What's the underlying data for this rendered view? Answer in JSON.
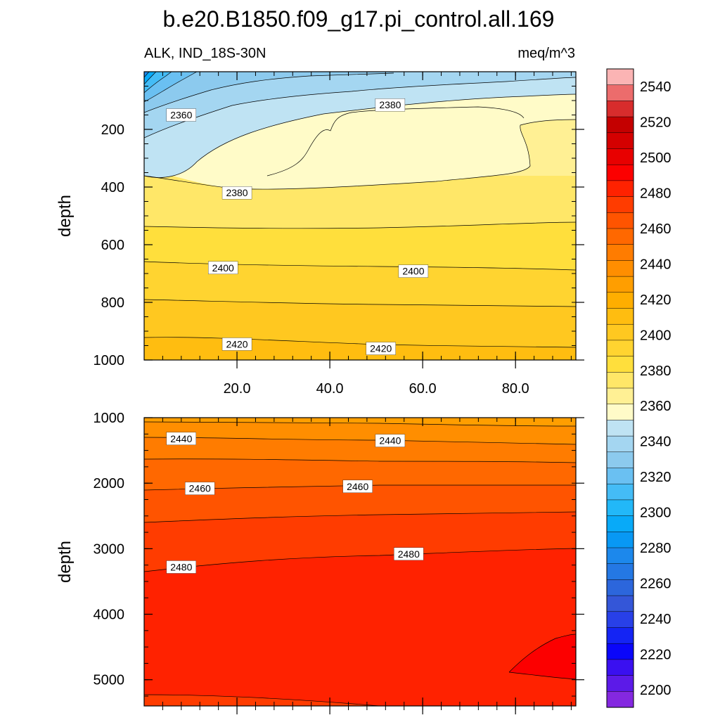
{
  "chart_data": {
    "type": "contour",
    "title": "b.e20.B1850.f09_g17.pi_control.all.169",
    "subtitle_left": "ALK, IND_18S-30N",
    "subtitle_right": "meq/m^3",
    "ylabel": "depth",
    "xlim": [
      0.0,
      93.0
    ],
    "x_ticks": [
      "20.0",
      "40.0",
      "60.0",
      "80.0"
    ],
    "x_tick_values": [
      20,
      40,
      60,
      80
    ],
    "panels": [
      {
        "name": "upper",
        "ylim": [
          0,
          1000
        ],
        "y_ticks": [
          "200",
          "400",
          "600",
          "800",
          "1000"
        ],
        "y_tick_values": [
          200,
          400,
          600,
          800,
          1000
        ],
        "contour_labels": [
          {
            "text": "2360",
            "x": 8,
            "y": 150
          },
          {
            "text": "2380",
            "x": 53,
            "y": 115
          },
          {
            "text": "2380",
            "x": 20,
            "y": 420
          },
          {
            "text": "2400",
            "x": 17,
            "y": 680
          },
          {
            "text": "2400",
            "x": 58,
            "y": 692
          },
          {
            "text": "2420",
            "x": 20,
            "y": 945
          },
          {
            "text": "2420",
            "x": 51,
            "y": 960
          }
        ]
      },
      {
        "name": "lower",
        "ylim": [
          1000,
          5400
        ],
        "y_ticks": [
          "1000",
          "2000",
          "3000",
          "4000",
          "5000"
        ],
        "y_tick_values": [
          1000,
          2000,
          3000,
          4000,
          5000
        ],
        "contour_labels": [
          {
            "text": "2440",
            "x": 8,
            "y": 1320
          },
          {
            "text": "2440",
            "x": 53,
            "y": 1350
          },
          {
            "text": "2460",
            "x": 12,
            "y": 2080
          },
          {
            "text": "2460",
            "x": 46,
            "y": 2050
          },
          {
            "text": "2480",
            "x": 8,
            "y": 3280
          },
          {
            "text": "2480",
            "x": 57,
            "y": 3080
          }
        ]
      }
    ],
    "colorbar": {
      "tick_labels": [
        "2540",
        "2520",
        "2500",
        "2480",
        "2460",
        "2440",
        "2420",
        "2400",
        "2380",
        "2360",
        "2340",
        "2320",
        "2300",
        "2280",
        "2260",
        "2240",
        "2220",
        "2200"
      ],
      "tick_values": [
        2540,
        2520,
        2500,
        2480,
        2460,
        2440,
        2420,
        2400,
        2380,
        2360,
        2340,
        2320,
        2300,
        2280,
        2260,
        2240,
        2220,
        2200
      ],
      "colors_top_to_bottom": [
        "#fbb4b4",
        "#ec6c6c",
        "#d82c2c",
        "#c40000",
        "#d40000",
        "#e80000",
        "#fc0000",
        "#ff2200",
        "#ff3c00",
        "#ff5400",
        "#ff6800",
        "#ff7c00",
        "#ff8e00",
        "#ff9e00",
        "#ffae00",
        "#ffbd10",
        "#ffc820",
        "#ffd430",
        "#ffdf3c",
        "#ffe768",
        "#fff094",
        "#fffbc8",
        "#bfe3f3",
        "#a4d6f1",
        "#8ccaee",
        "#6ac0f2",
        "#44bcf6",
        "#22b8f8",
        "#08aaf8",
        "#0898f4",
        "#1c88ec",
        "#2478e4",
        "#2c66dc",
        "#3456d8",
        "#2840e8",
        "#1424f4",
        "#0a06fa",
        "#3a10f0",
        "#5c1ae8",
        "#8428e0"
      ]
    }
  }
}
